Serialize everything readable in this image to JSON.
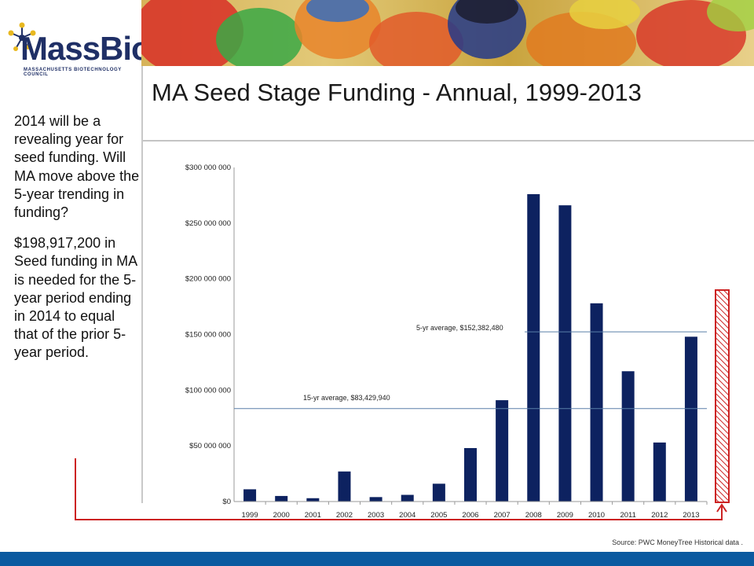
{
  "header": {
    "logo_text": "MassBio",
    "logo_subtitle": "MASSACHUSETTS BIOTECHNOLOGY COUNCIL"
  },
  "slide": {
    "title": "MA Seed Stage Funding - Annual, 1999-2013",
    "side_paragraph_1": "2014 will be a revealing year for seed funding.  Will MA move above the 5-year trending in funding?",
    "side_paragraph_2": "$198,917,200 in Seed funding in MA is needed for the 5-year period ending in 2014 to equal that of the prior 5-year period.",
    "source": "Source: PWC MoneyTree Historical data ."
  },
  "colors": {
    "bar": "#0d2260",
    "avg_line": "#5a7fa8",
    "arrow": "#cc2222",
    "footer": "#0b5aa0"
  },
  "chart_data": {
    "type": "bar",
    "categories": [
      "1999",
      "2000",
      "2001",
      "2002",
      "2003",
      "2004",
      "2005",
      "2006",
      "2007",
      "2008",
      "2009",
      "2010",
      "2011",
      "2012",
      "2013"
    ],
    "values": [
      11000000,
      5000000,
      3000000,
      27000000,
      4000000,
      6000000,
      16000000,
      48000000,
      91000000,
      276000000,
      266000000,
      178000000,
      117000000,
      53000000,
      148000000
    ],
    "ylim": [
      0,
      300000000
    ],
    "yticks": [
      "$0",
      "$50 000 000",
      "$100 000 000",
      "$150 000 000",
      "$200 000 000",
      "$250 000 000",
      "$300 000 000"
    ],
    "ytick_values": [
      0,
      50000000,
      100000000,
      150000000,
      200000000,
      250000000,
      300000000
    ],
    "annotations": [
      {
        "label": "15-yr average, $83,429,940",
        "value": 83429940
      },
      {
        "label": "5-yr average, $152,382,480",
        "value": 152382480
      }
    ],
    "grid": false,
    "legend": "none"
  }
}
